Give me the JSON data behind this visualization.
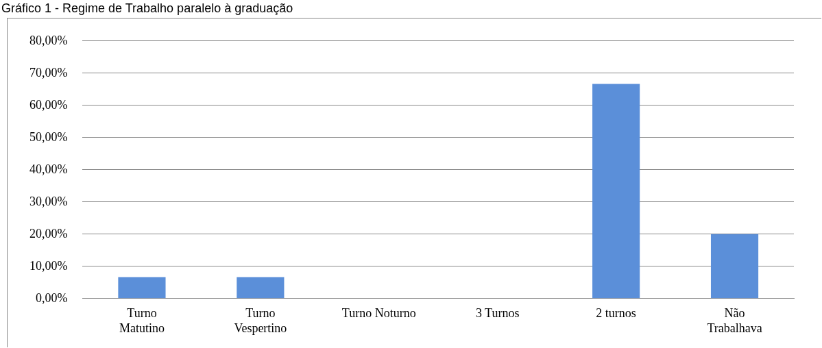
{
  "chart_data": {
    "type": "bar",
    "title": "Gráfico 1 - Regime de Trabalho paralelo à graduação",
    "categories": [
      "Turno Matutino",
      "Turno Vespertino",
      "Turno Noturno",
      "3 Turnos",
      "2 turnos",
      "Não Trabalhava"
    ],
    "values": [
      6.67,
      6.67,
      0,
      0,
      66.67,
      20
    ],
    "color": "#5b8fd9",
    "ylim": [
      0,
      80
    ],
    "yticks": [
      {
        "value": 0,
        "label": "0,00%"
      },
      {
        "value": 10,
        "label": "10,00%"
      },
      {
        "value": 20,
        "label": "20,00%"
      },
      {
        "value": 30,
        "label": "30,00%"
      },
      {
        "value": 40,
        "label": "40,00%"
      },
      {
        "value": 50,
        "label": "50,00%"
      },
      {
        "value": 60,
        "label": "60,00%"
      },
      {
        "value": 70,
        "label": "70,00%"
      },
      {
        "value": 80,
        "label": "80,00%"
      }
    ],
    "grid": "y",
    "legend": false
  }
}
